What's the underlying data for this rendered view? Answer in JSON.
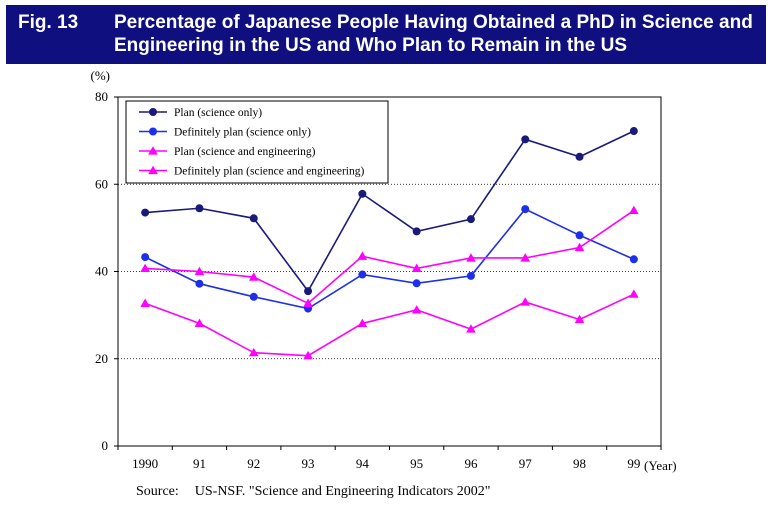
{
  "header": {
    "fig_label": "Fig. 13",
    "title_line1": "Percentage of Japanese People Having Obtained a PhD in Science and",
    "title_line2": "Engineering in the US and Who Plan to Remain in the US"
  },
  "source": {
    "label": "Source:",
    "text": "US-NSF. \"Science and Engineering Indicators 2002\""
  },
  "chart_data": {
    "type": "line",
    "title": "Percentage of Japanese People Having Obtained a PhD in Science and Engineering in the US and Who Plan to Remain in the US",
    "ylabel": "(%)",
    "xlabel": "(Year)",
    "ylim": [
      0,
      80
    ],
    "yticks": [
      0,
      20,
      40,
      60,
      80
    ],
    "grid": "horizontal dotted at 20, 40, 60",
    "legend_position": "top-left",
    "categories": [
      "1990",
      "91",
      "92",
      "93",
      "94",
      "95",
      "96",
      "97",
      "98",
      "99"
    ],
    "series": [
      {
        "name": "Plan (science only)",
        "color": "#1a1a7a",
        "marker": "circle",
        "values": [
          53.5,
          54.5,
          52.2,
          35.5,
          57.8,
          49.2,
          52,
          70.3,
          66.3,
          72.2
        ]
      },
      {
        "name": "Definitely plan (science only)",
        "color": "#1e2fe8",
        "marker": "circle",
        "values": [
          43.3,
          37.2,
          34.2,
          31.5,
          39.3,
          37.3,
          39,
          54.3,
          48.3,
          42.8
        ]
      },
      {
        "name": "Plan (science and engineering)",
        "color": "#ff00ff",
        "marker": "triangle",
        "values": [
          40.7,
          40,
          38.7,
          32.7,
          43.5,
          40.7,
          43.1,
          43.1,
          45.5,
          54
        ]
      },
      {
        "name": "Definitely plan (science and engineering)",
        "color": "#ff00ff",
        "marker": "triangle",
        "values": [
          32.7,
          28.1,
          21.4,
          20.7,
          28.1,
          31.2,
          26.8,
          33,
          29,
          34.8
        ]
      }
    ]
  }
}
